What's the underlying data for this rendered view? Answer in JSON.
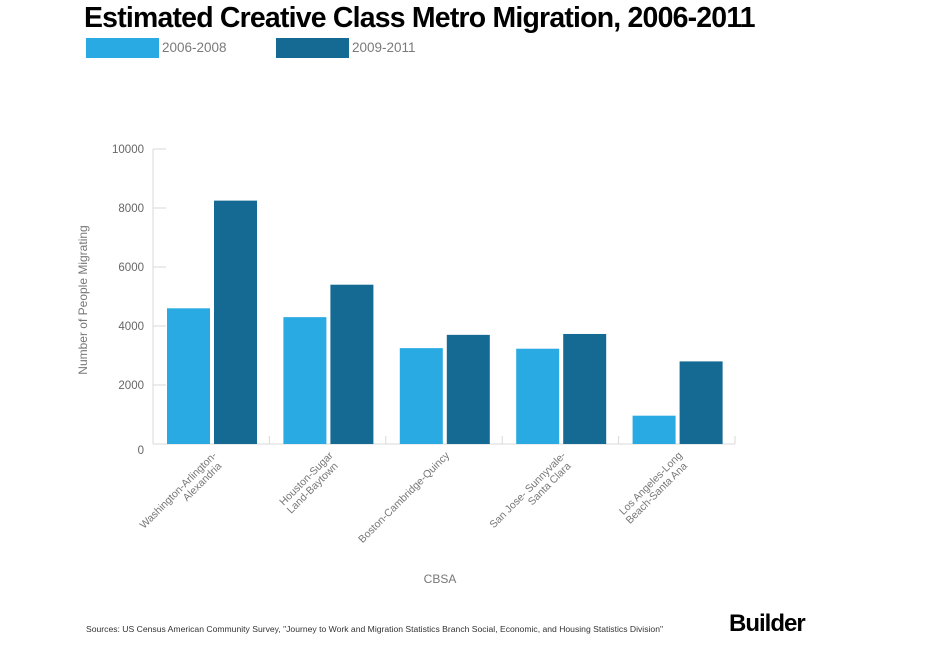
{
  "chart_data": {
    "type": "bar",
    "title": "Estimated Creative Class Metro Migration, 2006-2011",
    "xlabel": "CBSA",
    "ylabel": "Number of People Migrating",
    "ylim": [
      0,
      10000
    ],
    "yticks": [
      0,
      2000,
      4000,
      6000,
      8000,
      10000
    ],
    "grid": false,
    "legend_position": "top-left",
    "categories": [
      [
        "Washington-Arlington-",
        "Alexandria"
      ],
      [
        "Houston-Sugar",
        "Land-Baytown"
      ],
      [
        "Boston-Cambridge-Quincy"
      ],
      [
        "San Jose- Sunnyvale-",
        "Santa Clara"
      ],
      [
        "Los Angeles-Long",
        "Beach-Santa Ana"
      ]
    ],
    "series": [
      {
        "name": "2006-2008",
        "color": "#29aae2",
        "values": [
          4600,
          4300,
          3250,
          3230,
          960
        ]
      },
      {
        "name": "2009-2011",
        "color": "#156a94",
        "values": [
          8250,
          5400,
          3700,
          3730,
          2800
        ]
      }
    ]
  },
  "footer": {
    "source": "Sources: US Census American Community Survey, \"Journey to Work and Migration Statistics Branch Social, Economic, and Housing Statistics Division\"",
    "brand": "Builder"
  }
}
